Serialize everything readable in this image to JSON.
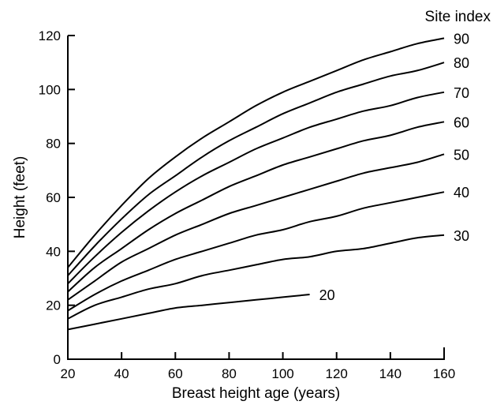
{
  "chart_data": {
    "type": "line",
    "xlabel": "Breast height age (years)",
    "ylabel": "Height (feet)",
    "legend_title": "Site index",
    "xlim": [
      20,
      160
    ],
    "ylim": [
      0,
      120
    ],
    "x_ticks": [
      20,
      40,
      60,
      80,
      100,
      120,
      140,
      160
    ],
    "y_ticks": [
      0,
      20,
      40,
      60,
      80,
      100,
      120
    ],
    "series": [
      {
        "name": "90",
        "x": [
          20,
          30,
          40,
          50,
          60,
          70,
          80,
          90,
          100,
          110,
          120,
          130,
          140,
          150,
          160
        ],
        "y": [
          34,
          46,
          57,
          67,
          75,
          82,
          88,
          94,
          99,
          103,
          107,
          111,
          114,
          117,
          119
        ]
      },
      {
        "name": "80",
        "x": [
          20,
          30,
          40,
          50,
          60,
          70,
          80,
          90,
          100,
          110,
          120,
          130,
          140,
          150,
          160
        ],
        "y": [
          31,
          42,
          52,
          61,
          68,
          75,
          81,
          86,
          91,
          95,
          99,
          102,
          105,
          107,
          110
        ]
      },
      {
        "name": "70",
        "x": [
          20,
          30,
          40,
          50,
          60,
          70,
          80,
          90,
          100,
          110,
          120,
          130,
          140,
          150,
          160
        ],
        "y": [
          28,
          38,
          47,
          55,
          62,
          68,
          73,
          78,
          82,
          86,
          89,
          92,
          94,
          97,
          99
        ]
      },
      {
        "name": "60",
        "x": [
          20,
          30,
          40,
          50,
          60,
          70,
          80,
          90,
          100,
          110,
          120,
          130,
          140,
          150,
          160
        ],
        "y": [
          25,
          34,
          41,
          48,
          54,
          59,
          64,
          68,
          72,
          75,
          78,
          81,
          83,
          86,
          88
        ]
      },
      {
        "name": "50",
        "x": [
          20,
          30,
          40,
          50,
          60,
          70,
          80,
          90,
          100,
          110,
          120,
          130,
          140,
          150,
          160
        ],
        "y": [
          22,
          29,
          36,
          41,
          46,
          50,
          54,
          57,
          60,
          63,
          66,
          69,
          71,
          73,
          76
        ]
      },
      {
        "name": "40",
        "x": [
          20,
          30,
          40,
          50,
          60,
          70,
          80,
          90,
          100,
          110,
          120,
          130,
          140,
          150,
          160
        ],
        "y": [
          18,
          24,
          29,
          33,
          37,
          40,
          43,
          46,
          48,
          51,
          53,
          56,
          58,
          60,
          62
        ]
      },
      {
        "name": "30",
        "x": [
          20,
          30,
          40,
          50,
          60,
          70,
          80,
          90,
          100,
          110,
          120,
          130,
          140,
          150,
          160
        ],
        "y": [
          15,
          20,
          23,
          26,
          28,
          31,
          33,
          35,
          37,
          38,
          40,
          41,
          43,
          45,
          46
        ]
      },
      {
        "name": "20",
        "x": [
          20,
          30,
          40,
          50,
          60,
          70,
          80,
          90,
          100,
          110
        ],
        "y": [
          11,
          13,
          15,
          17,
          19,
          20,
          21,
          22,
          23,
          24
        ]
      }
    ]
  }
}
